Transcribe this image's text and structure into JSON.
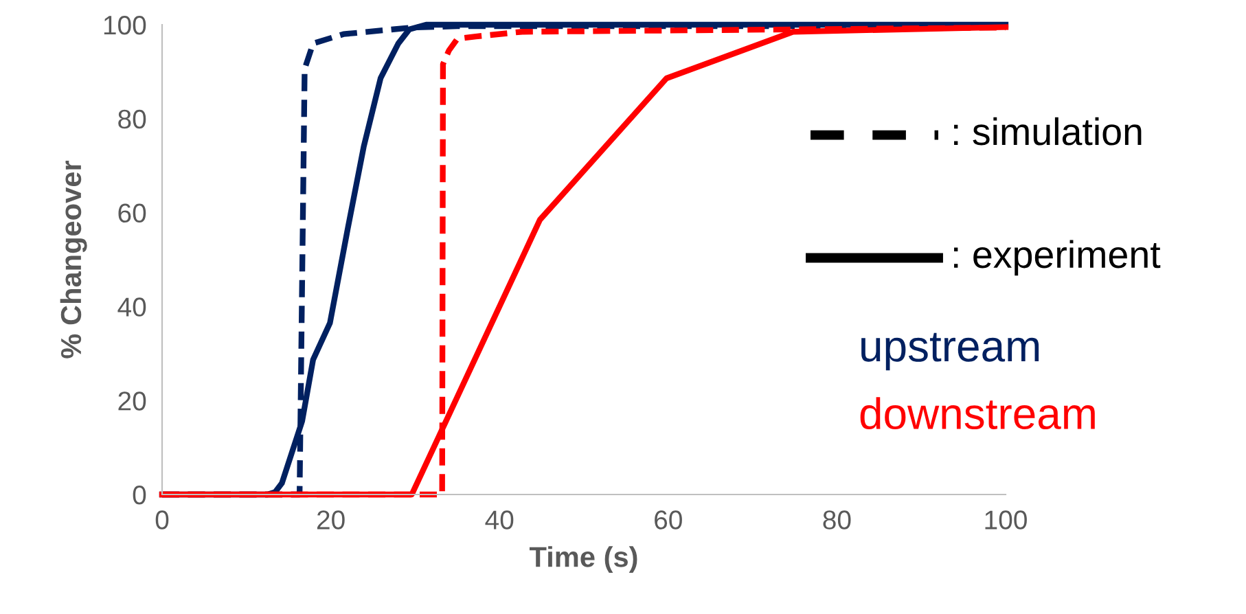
{
  "chart_data": {
    "type": "line",
    "xlabel": "Time (s)",
    "ylabel": "% Changeover",
    "xlim": [
      0,
      100
    ],
    "xticks": [
      0,
      20,
      40,
      60,
      80,
      100
    ],
    "ylim": [
      0,
      100
    ],
    "yticks": [
      0,
      20,
      40,
      60,
      80,
      100
    ],
    "grid": false,
    "marker": "none",
    "series": [
      {
        "color": "#002060",
        "line_style": "dashed",
        "x": [
          0,
          16.3,
          16.9,
          17.9,
          21.5,
          29.6,
          35,
          100
        ],
        "values": [
          0,
          0,
          90.6,
          96,
          98,
          99.4,
          99.7,
          99.7
        ]
      },
      {
        "color": "#002060",
        "line_style": "solid",
        "x": [
          0,
          12.5,
          13.4,
          14.2,
          16.6,
          17.9,
          19.9,
          22,
          23.9,
          25.9,
          28,
          29.3,
          31.3,
          100
        ],
        "values": [
          0,
          0,
          0.5,
          2.4,
          15.6,
          28.7,
          36.5,
          56.5,
          74,
          88.6,
          96,
          99,
          100,
          100
        ]
      },
      {
        "color": "#ff0000",
        "line_style": "dashed",
        "x": [
          0,
          33.2,
          33.3,
          34,
          35,
          37.2,
          42.7,
          100
        ],
        "values": [
          0,
          0,
          91.6,
          94.5,
          97,
          97.5,
          98.5,
          99.4
        ]
      },
      {
        "color": "#ff0000",
        "line_style": "solid",
        "x": [
          0,
          29.6,
          44.8,
          59.8,
          74.8,
          100
        ],
        "values": [
          0,
          0,
          58.5,
          88.6,
          98.5,
          99.5
        ]
      }
    ],
    "annotations": [
      ": simulation",
      ": experiment",
      "upstream",
      "downstream"
    ]
  }
}
